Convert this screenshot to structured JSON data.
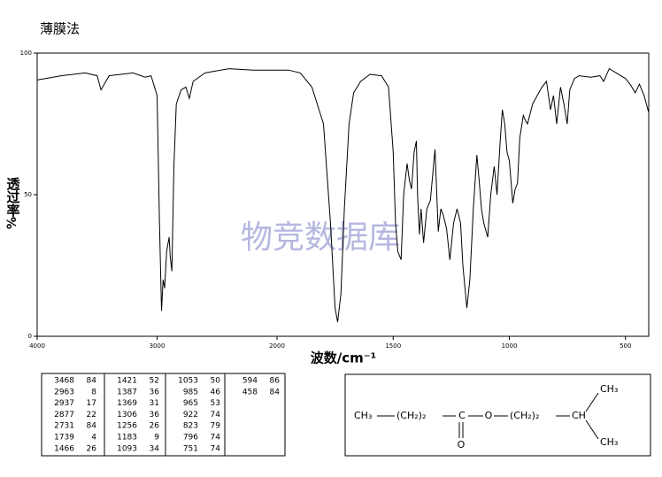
{
  "chart_data": {
    "type": "line",
    "title": "薄膜法",
    "watermark": "物竞数据库",
    "x_label": "波数/cm⁻¹",
    "y_label": "透过率",
    "y_unit": "%",
    "xlim": [
      4000,
      400
    ],
    "x_break": 2000,
    "ylim": [
      0,
      100
    ],
    "xticks": [
      4000,
      3000,
      2000,
      1500,
      1000,
      500
    ],
    "yticks": [
      0,
      50,
      100
    ],
    "color": "#000000",
    "x": [
      4000,
      3800,
      3600,
      3500,
      3468,
      3400,
      3200,
      3100,
      3050,
      3000,
      2980,
      2963,
      2950,
      2937,
      2920,
      2900,
      2890,
      2877,
      2860,
      2840,
      2800,
      2760,
      2731,
      2700,
      2600,
      2400,
      2200,
      2100,
      2000,
      1950,
      1900,
      1850,
      1800,
      1770,
      1750,
      1739,
      1725,
      1710,
      1690,
      1670,
      1640,
      1600,
      1550,
      1520,
      1500,
      1490,
      1480,
      1466,
      1455,
      1440,
      1430,
      1421,
      1410,
      1400,
      1395,
      1387,
      1380,
      1369,
      1355,
      1340,
      1330,
      1320,
      1306,
      1295,
      1285,
      1270,
      1256,
      1240,
      1225,
      1210,
      1200,
      1183,
      1170,
      1155,
      1140,
      1130,
      1120,
      1110,
      1093,
      1080,
      1065,
      1053,
      1040,
      1030,
      1020,
      1010,
      1000,
      985,
      975,
      965,
      955,
      940,
      930,
      922,
      900,
      880,
      860,
      840,
      823,
      810,
      796,
      780,
      765,
      751,
      740,
      720,
      700,
      650,
      610,
      594,
      570,
      540,
      500,
      480,
      458,
      440,
      420,
      400
    ],
    "values": [
      90.5,
      92,
      93,
      92,
      87,
      92,
      93,
      91.5,
      92,
      85,
      40,
      9,
      20,
      17,
      30,
      35,
      28,
      23,
      60,
      82,
      87,
      88,
      84,
      90,
      93,
      94.5,
      94,
      94,
      94,
      94,
      93,
      88,
      75,
      40,
      10,
      5,
      15,
      45,
      75,
      86,
      90,
      92.5,
      92,
      88,
      65,
      40,
      30,
      27,
      50,
      61,
      55,
      52,
      65,
      69,
      50,
      36,
      45,
      33,
      45,
      48,
      57,
      66,
      37,
      45,
      43,
      38,
      27,
      40,
      45,
      40,
      25,
      10,
      20,
      45,
      64,
      55,
      45,
      40,
      35,
      50,
      60,
      50,
      68,
      80,
      75,
      65,
      62,
      47,
      52,
      54,
      70,
      78,
      76,
      75,
      82,
      85,
      88,
      90,
      80,
      85,
      75,
      88,
      82,
      75,
      87,
      91,
      92,
      91.5,
      92,
      90,
      94.5,
      93,
      91,
      89,
      86,
      89,
      85,
      79
    ]
  },
  "peaks": [
    [
      "3468",
      "84"
    ],
    [
      "2963",
      "8"
    ],
    [
      "2937",
      "17"
    ],
    [
      "2877",
      "22"
    ],
    [
      "2731",
      "84"
    ],
    [
      "1739",
      "4"
    ],
    [
      "1466",
      "26"
    ],
    [
      "1421",
      "52"
    ],
    [
      "1387",
      "36"
    ],
    [
      "1369",
      "31"
    ],
    [
      "1306",
      "36"
    ],
    [
      "1256",
      "26"
    ],
    [
      "1183",
      "9"
    ],
    [
      "1093",
      "34"
    ],
    [
      "1053",
      "50"
    ],
    [
      "985",
      "46"
    ],
    [
      "965",
      "53"
    ],
    [
      "922",
      "74"
    ],
    [
      "823",
      "79"
    ],
    [
      "796",
      "74"
    ],
    [
      "751",
      "74"
    ],
    [
      "594",
      "86"
    ],
    [
      "458",
      "84"
    ]
  ],
  "structure": {
    "labels": [
      "CH₃",
      "(CH₂)₂",
      "C",
      "O",
      "(CH₂)₂",
      "CH",
      "CH₃",
      "CH₃",
      "O"
    ]
  }
}
